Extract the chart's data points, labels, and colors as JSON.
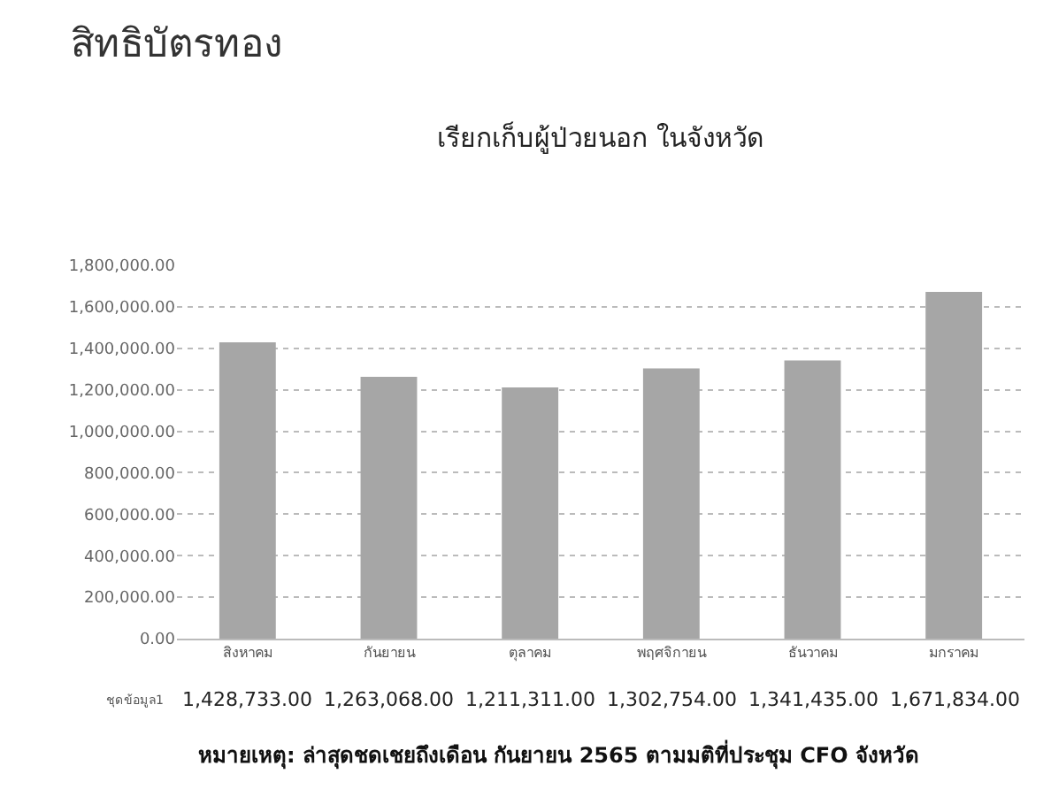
{
  "chart_data": {
    "type": "bar",
    "title": "สิทธิบัตรทอง",
    "subtitle": "เรียกเก็บผู้ป่วยนอก ในจังหวัด",
    "categories": [
      "สิงหาคม",
      "กันยายน",
      "ตุลาคม",
      "พฤศจิกายน",
      "ธันวาคม",
      "มกราคม"
    ],
    "series": [
      {
        "name": "ชุดข้อมูล1",
        "color": "#a6a6a6",
        "values": [
          1428733,
          1263068,
          1211311,
          1302754,
          1341435,
          1671834
        ],
        "value_labels": [
          "1,428,733.00",
          "1,263,068.00",
          "1,211,311.00",
          "1,302,754.00",
          "1,341,435.00",
          "1,671,834.00"
        ]
      }
    ],
    "ylim": [
      0,
      1800000
    ],
    "yticks": [
      {
        "value": 0,
        "label": "0.00"
      },
      {
        "value": 200000,
        "label": "200,000.00"
      },
      {
        "value": 400000,
        "label": "400,000.00"
      },
      {
        "value": 600000,
        "label": "600,000.00"
      },
      {
        "value": 800000,
        "label": "800,000.00"
      },
      {
        "value": 1000000,
        "label": "1,000,000.00"
      },
      {
        "value": 1200000,
        "label": "1,200,000.00"
      },
      {
        "value": 1400000,
        "label": "1,400,000.00"
      },
      {
        "value": 1600000,
        "label": "1,600,000.00"
      },
      {
        "value": 1800000,
        "label": "1,800,000.00"
      }
    ],
    "grid": "y",
    "annotations": [
      "หมายเหตุ: ล่าสุดชดเชยถึงเดือน กันยายน 2565 ตามมติที่ประชุม CFO จังหวัด"
    ]
  }
}
